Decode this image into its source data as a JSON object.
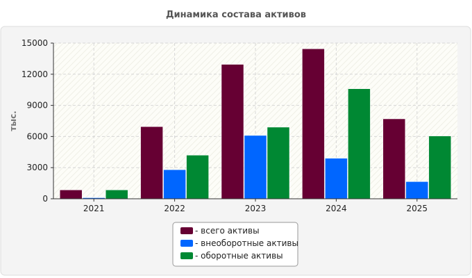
{
  "chart_data": {
    "type": "bar",
    "title": "Динамика состава активов",
    "ylabel": "тыс.",
    "xlabel": "",
    "categories": [
      "2021",
      "2022",
      "2023",
      "2024",
      "2025"
    ],
    "ylim": [
      0,
      15000
    ],
    "yticks": [
      0,
      3000,
      6000,
      9000,
      12000,
      15000
    ],
    "grid": true,
    "legend_position": "bottom",
    "series": [
      {
        "name": "- всего активы",
        "color": "#660033",
        "values": [
          850,
          6950,
          12950,
          14450,
          7700
        ]
      },
      {
        "name": "- внеоборотные активы",
        "color": "#0066ff",
        "values": [
          100,
          2800,
          6100,
          3900,
          1650
        ]
      },
      {
        "name": "- оборотные активы",
        "color": "#008833",
        "values": [
          850,
          4200,
          6900,
          10600,
          6050
        ]
      }
    ]
  }
}
